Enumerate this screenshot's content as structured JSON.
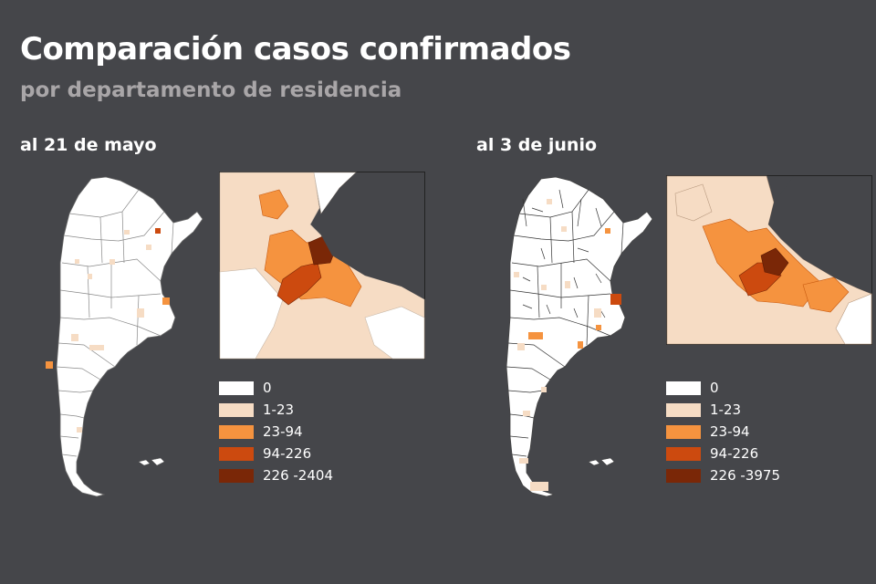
{
  "title": "Comparación casos confirmados",
  "subtitle": "por departamento de residencia",
  "panels": [
    {
      "label": "al 21 de mayo",
      "legend": [
        {
          "label": "0",
          "color": "#ffffff"
        },
        {
          "label": "1-23",
          "color": "#f6dcc4"
        },
        {
          "label": "23-94",
          "color": "#f5933f"
        },
        {
          "label": "94-226",
          "color": "#cc4a0f"
        },
        {
          "label": "226 -2404",
          "color": "#7a2707"
        }
      ]
    },
    {
      "label": "al 3 de junio",
      "legend": [
        {
          "label": "0",
          "color": "#ffffff"
        },
        {
          "label": "1-23",
          "color": "#f6dcc4"
        },
        {
          "label": "23-94",
          "color": "#f5933f"
        },
        {
          "label": "94-226",
          "color": "#cc4a0f"
        },
        {
          "label": "226 -3975",
          "color": "#7a2707"
        }
      ]
    }
  ],
  "colors": {
    "background": "#45464a",
    "map_fill": "#ffffff",
    "border": "#555555",
    "class_0": "#ffffff",
    "class_1": "#f6dcc4",
    "class_2": "#f5933f",
    "class_3": "#cc4a0f",
    "class_4": "#7a2707"
  }
}
